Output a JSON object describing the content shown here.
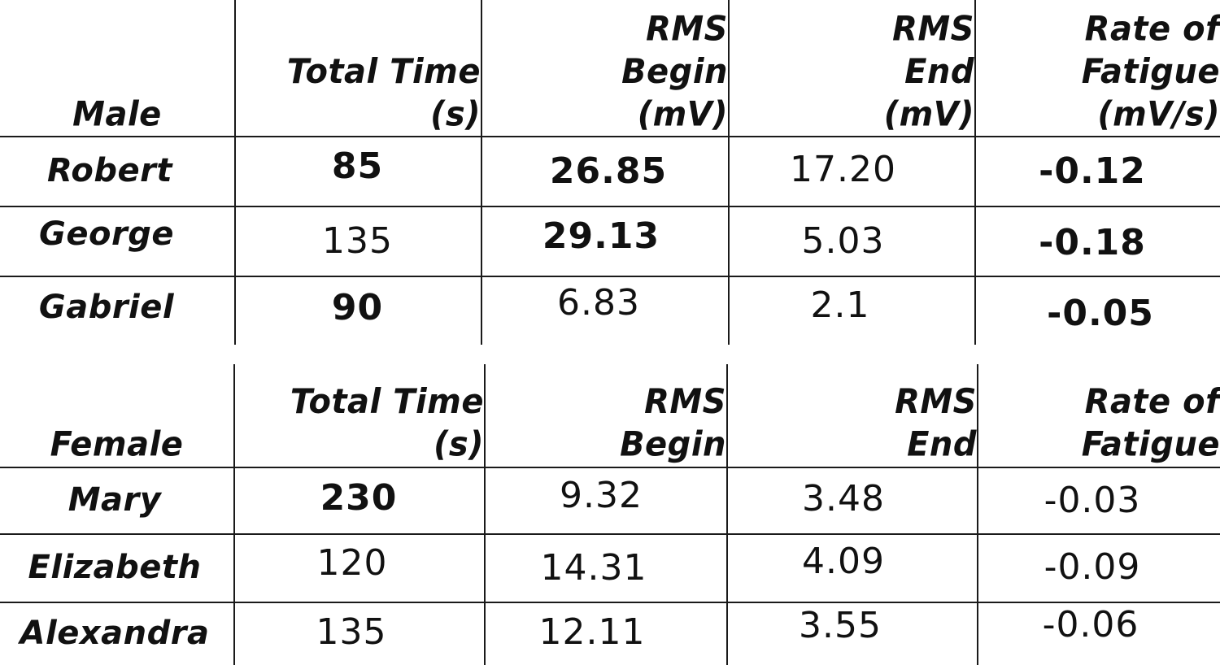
{
  "tables": {
    "male": {
      "headers": {
        "group": "Male",
        "total_time": [
          "Total Time",
          "(s)"
        ],
        "rms_begin": [
          "RMS",
          "Begin",
          "(mV)"
        ],
        "rms_end": [
          "RMS",
          "End",
          "(mV)"
        ],
        "rate": [
          "Rate of",
          "Fatigue",
          "(mV/s)"
        ]
      },
      "rows": [
        {
          "name": "Robert",
          "total_time": "85",
          "rms_begin": "26.85",
          "rms_end": "17.20",
          "rate": "-0.12"
        },
        {
          "name": "George",
          "total_time": "135",
          "rms_begin": "29.13",
          "rms_end": "5.03",
          "rate": "-0.18"
        },
        {
          "name": "Gabriel",
          "total_time": "90",
          "rms_begin": "6.83",
          "rms_end": "2.1",
          "rate": "-0.05"
        }
      ]
    },
    "female": {
      "headers": {
        "group": "Female",
        "total_time": [
          "Total Time",
          "(s)"
        ],
        "rms_begin": [
          "RMS",
          "Begin"
        ],
        "rms_end": [
          "RMS",
          "End"
        ],
        "rate": [
          "Rate of",
          "Fatigue"
        ]
      },
      "rows": [
        {
          "name": "Mary",
          "total_time": "230",
          "rms_begin": "9.32",
          "rms_end": "3.48",
          "rate": "-0.03"
        },
        {
          "name": "Elizabeth",
          "total_time": "120",
          "rms_begin": "14.31",
          "rms_end": "4.09",
          "rate": "-0.09"
        },
        {
          "name": "Alexandra",
          "total_time": "135",
          "rms_begin": "12.11",
          "rms_end": "3.55",
          "rate": "-0.06"
        }
      ]
    }
  },
  "colors": {
    "ink": "#111111",
    "background": "#ffffff"
  }
}
